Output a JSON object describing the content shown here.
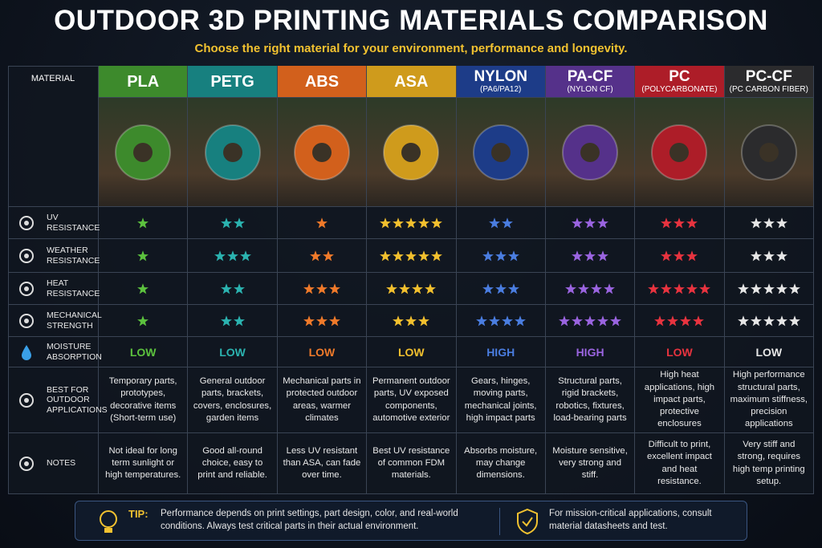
{
  "header": {
    "title": "OUTDOOR 3D PRINTING MATERIALS COMPARISON",
    "subtitle": "Choose the right material for your environment, performance and longevity."
  },
  "table": {
    "corner": "MATERIAL",
    "materials": [
      {
        "name": "PLA",
        "color": "#3d8a2c",
        "accent": "#5cc23e"
      },
      {
        "name": "PETG",
        "color": "#17807f",
        "accent": "#2bb3b0"
      },
      {
        "name": "ABS",
        "color": "#d2601c",
        "accent": "#f07a2a"
      },
      {
        "name": "ASA",
        "color": "#cf9b1c",
        "accent": "#f2c02e"
      },
      {
        "name": "NYLON",
        "sub": "(PA6/PA12)",
        "color": "#1d3c88",
        "accent": "#4a7de0"
      },
      {
        "name": "PA-CF",
        "sub": "(NYLON CF)",
        "color": "#55318a",
        "accent": "#9a64e0"
      },
      {
        "name": "PC",
        "sub": "(POLYCARBONATE)",
        "color": "#ad1d28",
        "accent": "#e8333f"
      },
      {
        "name": "PC-CF",
        "sub": "(PC CARBON FIBER)",
        "color": "#2b2b2d",
        "accent": "#e6e6e6"
      }
    ],
    "rows": [
      {
        "label": "UV RESISTANCE",
        "ratings": [
          1,
          2,
          1,
          5,
          2,
          3,
          3,
          3
        ]
      },
      {
        "label": "WEATHER RESISTANCE",
        "ratings": [
          1,
          3,
          2,
          5,
          3,
          3,
          3,
          3
        ]
      },
      {
        "label": "HEAT RESISTANCE",
        "ratings": [
          1,
          2,
          3,
          4,
          3,
          4,
          5,
          5
        ]
      },
      {
        "label": "MECHANICAL STRENGTH",
        "ratings": [
          1,
          2,
          3,
          3,
          4,
          5,
          4,
          5
        ]
      },
      {
        "label": "MOISTURE ABSORPTION",
        "levels": [
          "LOW",
          "LOW",
          "LOW",
          "LOW",
          "HIGH",
          "HIGH",
          "LOW",
          "LOW"
        ]
      },
      {
        "label": "BEST FOR OUTDOOR APPLICATIONS",
        "texts": [
          "Temporary parts, prototypes, decorative items (Short-term use)",
          "General outdoor parts, brackets, covers, enclosures, garden items",
          "Mechanical parts in protected outdoor areas, warmer climates",
          "Permanent outdoor parts, UV exposed components, automotive exterior",
          "Gears, hinges, moving parts, mechanical joints, high impact parts",
          "Structural parts, rigid brackets, robotics, fixtures, load-bearing parts",
          "High heat applications, high impact parts, protective enclosures",
          "High performance structural parts, maximum stiffness, precision applications"
        ]
      },
      {
        "label": "NOTES",
        "texts": [
          "Not ideal for long term sunlight or high temperatures.",
          "Good all-round choice, easy to print and reliable.",
          "Less UV resistant than ASA, can fade over time.",
          "Best UV resistance of common FDM materials.",
          "Absorbs moisture, may change dimensions.",
          "Moisture sensitive, very strong and stiff.",
          "Difficult to print, excellent impact and heat resistance.",
          "Very stiff and strong, requires high temp printing setup."
        ]
      }
    ]
  },
  "tip": {
    "label": "TIP:",
    "text": "Performance depends on print settings, part design, color, and real-world conditions. Always test critical parts in their actual environment.",
    "note": "For mission-critical applications, consult material datasheets and test."
  }
}
